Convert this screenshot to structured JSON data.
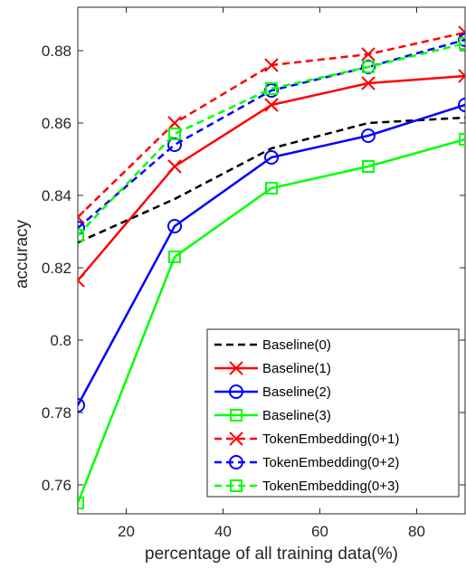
{
  "chart_data": {
    "type": "line",
    "title": "",
    "xlabel": "percentage of all training data(%)",
    "ylabel": "accuracy",
    "xlim": [
      10,
      90
    ],
    "ylim": [
      0.752,
      0.892
    ],
    "xticks": [
      20,
      40,
      60,
      80
    ],
    "xtick_labels": [
      "20",
      "40",
      "60",
      "80"
    ],
    "yticks": [
      0.76,
      0.78,
      0.8,
      0.82,
      0.84,
      0.86,
      0.88
    ],
    "ytick_labels": [
      "0.76",
      "0.78",
      "0.8",
      "0.82",
      "0.84",
      "0.86",
      "0.88"
    ],
    "x": [
      10,
      30,
      50,
      70,
      90
    ],
    "grid": false,
    "legend_position": "bottom-right",
    "series": [
      {
        "name": "Baseline(0)",
        "color": "#000000",
        "style": "dashed",
        "marker": "none",
        "values": [
          0.827,
          0.839,
          0.853,
          0.86,
          0.8615
        ]
      },
      {
        "name": "Baseline(1)",
        "color": "#ff0000",
        "style": "solid",
        "marker": "x",
        "values": [
          0.8165,
          0.848,
          0.865,
          0.871,
          0.873
        ]
      },
      {
        "name": "Baseline(2)",
        "color": "#0000ff",
        "style": "solid",
        "marker": "circle",
        "values": [
          0.782,
          0.8315,
          0.8505,
          0.8565,
          0.865
        ]
      },
      {
        "name": "Baseline(3)",
        "color": "#00ff00",
        "style": "solid",
        "marker": "square",
        "values": [
          0.755,
          0.823,
          0.842,
          0.848,
          0.8555
        ]
      },
      {
        "name": "TokenEmbedding(0+1)",
        "color": "#ff0000",
        "style": "dashed",
        "marker": "x",
        "values": [
          0.834,
          0.86,
          0.876,
          0.879,
          0.885
        ]
      },
      {
        "name": "TokenEmbedding(0+2)",
        "color": "#0000ff",
        "style": "dashed",
        "marker": "circle",
        "values": [
          0.831,
          0.854,
          0.869,
          0.8755,
          0.883
        ]
      },
      {
        "name": "TokenEmbedding(0+3)",
        "color": "#00ff00",
        "style": "dashed",
        "marker": "square",
        "values": [
          0.829,
          0.857,
          0.8695,
          0.8755,
          0.882
        ]
      }
    ]
  }
}
